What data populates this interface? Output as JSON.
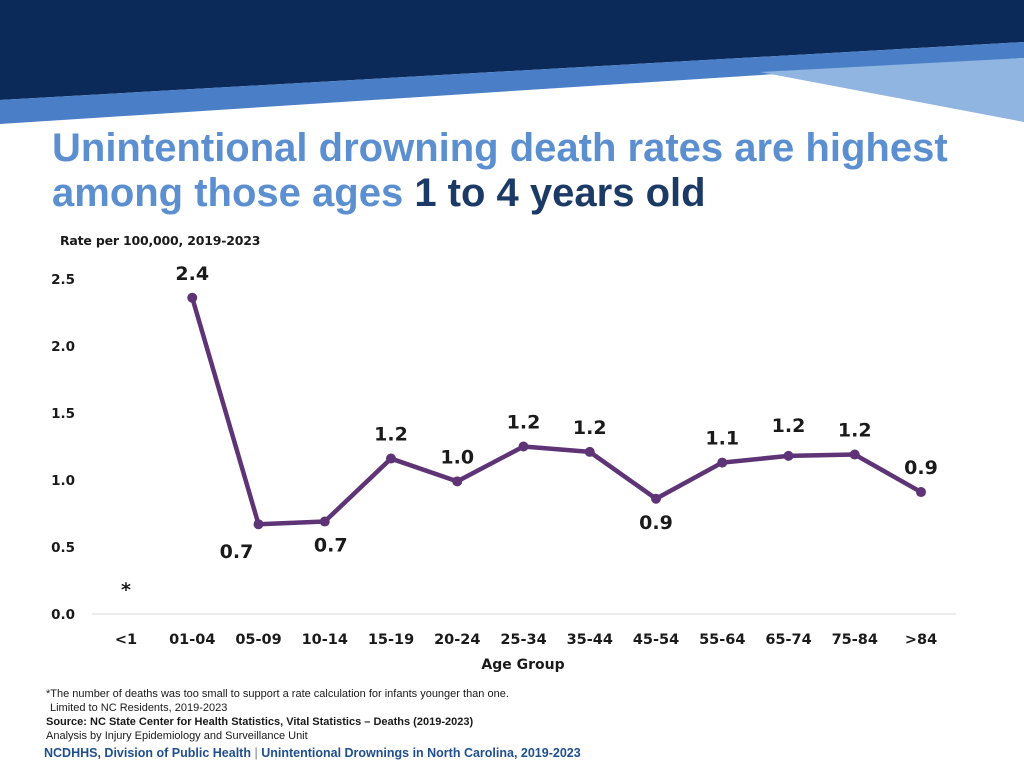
{
  "header": {
    "title_part1": "Unintentional drowning death rates are highest among those ages ",
    "title_part2": "1 to 4 years old",
    "colors": {
      "banner_dark": "#0b2a5a",
      "banner_mid": "#4a7fc8",
      "banner_light": "#8fb5e0",
      "title_light": "#5b8fd0",
      "title_dark": "#1b3a66",
      "line": "#5e3477"
    }
  },
  "chart_data": {
    "type": "line",
    "title": "",
    "subtitle": "Rate per 100,000, 2019-2023",
    "xlabel": "Age Group",
    "ylabel": "",
    "ylim": [
      0,
      2.5
    ],
    "yticks": [
      "0.0",
      "0.5",
      "1.0",
      "1.5",
      "2.0",
      "2.5"
    ],
    "grid": false,
    "categories": [
      "<1",
      "01-04",
      "05-09",
      "10-14",
      "15-19",
      "20-24",
      "25-34",
      "35-44",
      "45-54",
      "55-64",
      "65-74",
      "75-84",
      ">84"
    ],
    "values": [
      null,
      2.36,
      0.67,
      0.69,
      1.16,
      0.99,
      1.25,
      1.21,
      0.86,
      1.13,
      1.18,
      1.19,
      0.91
    ],
    "data_labels": [
      "*",
      "2.4",
      "0.7",
      "0.7",
      "1.2",
      "1.0",
      "1.2",
      "1.2",
      "0.9",
      "1.1",
      "1.2",
      "1.2",
      "0.9"
    ]
  },
  "notes": {
    "line1": "*The number of deaths was too small to support a rate calculation for infants younger than one.",
    "line2": "Limited to NC Residents, 2019-2023",
    "line3": "Source: NC State Center for Health Statistics, Vital Statistics – Deaths (2019-2023)",
    "line4": "Analysis by Injury Epidemiology and Surveillance Unit"
  },
  "footer": {
    "left": "NCDHHS, Division of Public Health",
    "separator": "|",
    "right": "Unintentional Drownings in North Carolina, 2019-2023"
  }
}
